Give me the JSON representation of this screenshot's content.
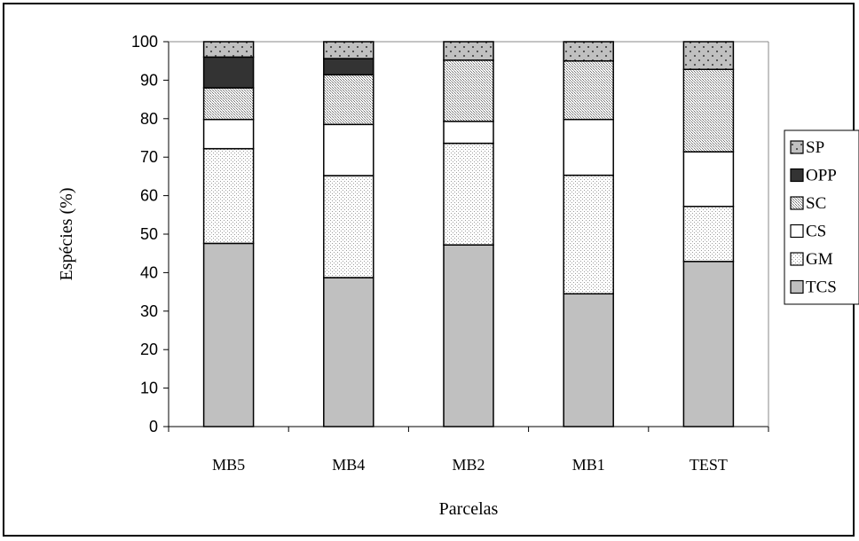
{
  "chart_data": {
    "type": "bar",
    "stacked": true,
    "categories": [
      "MB5",
      "MB4",
      "MB2",
      "MB1",
      "TEST"
    ],
    "series": [
      {
        "name": "TCS",
        "values": [
          47.6,
          38.7,
          47.2,
          34.5,
          42.9
        ],
        "fill": "#c0c0c0",
        "pattern": "solid"
      },
      {
        "name": "GM",
        "values": [
          24.6,
          26.5,
          26.4,
          30.8,
          14.3
        ],
        "fill": "#ffffff",
        "pattern": "fine-dots"
      },
      {
        "name": "CS",
        "values": [
          7.6,
          13.3,
          5.7,
          14.5,
          14.2
        ],
        "fill": "#ffffff",
        "pattern": "solid"
      },
      {
        "name": "SC",
        "values": [
          8.2,
          12.9,
          15.9,
          15.2,
          21.4
        ],
        "fill": "#ffffff",
        "pattern": "stipple"
      },
      {
        "name": "OPP",
        "values": [
          8.0,
          4.2,
          0,
          0,
          0
        ],
        "fill": "#333333",
        "pattern": "solid"
      },
      {
        "name": "SP",
        "values": [
          4.0,
          4.4,
          4.8,
          5.0,
          7.2
        ],
        "fill": "#c0c0c0",
        "pattern": "dots"
      }
    ],
    "xlabel": "Parcelas",
    "ylabel": "Espécies (%)",
    "ylim": [
      0,
      100
    ],
    "yticks": [
      "0",
      "10",
      "20",
      "30",
      "40",
      "50",
      "60",
      "70",
      "80",
      "90",
      "100"
    ],
    "grid": false,
    "legend_position": "right"
  }
}
